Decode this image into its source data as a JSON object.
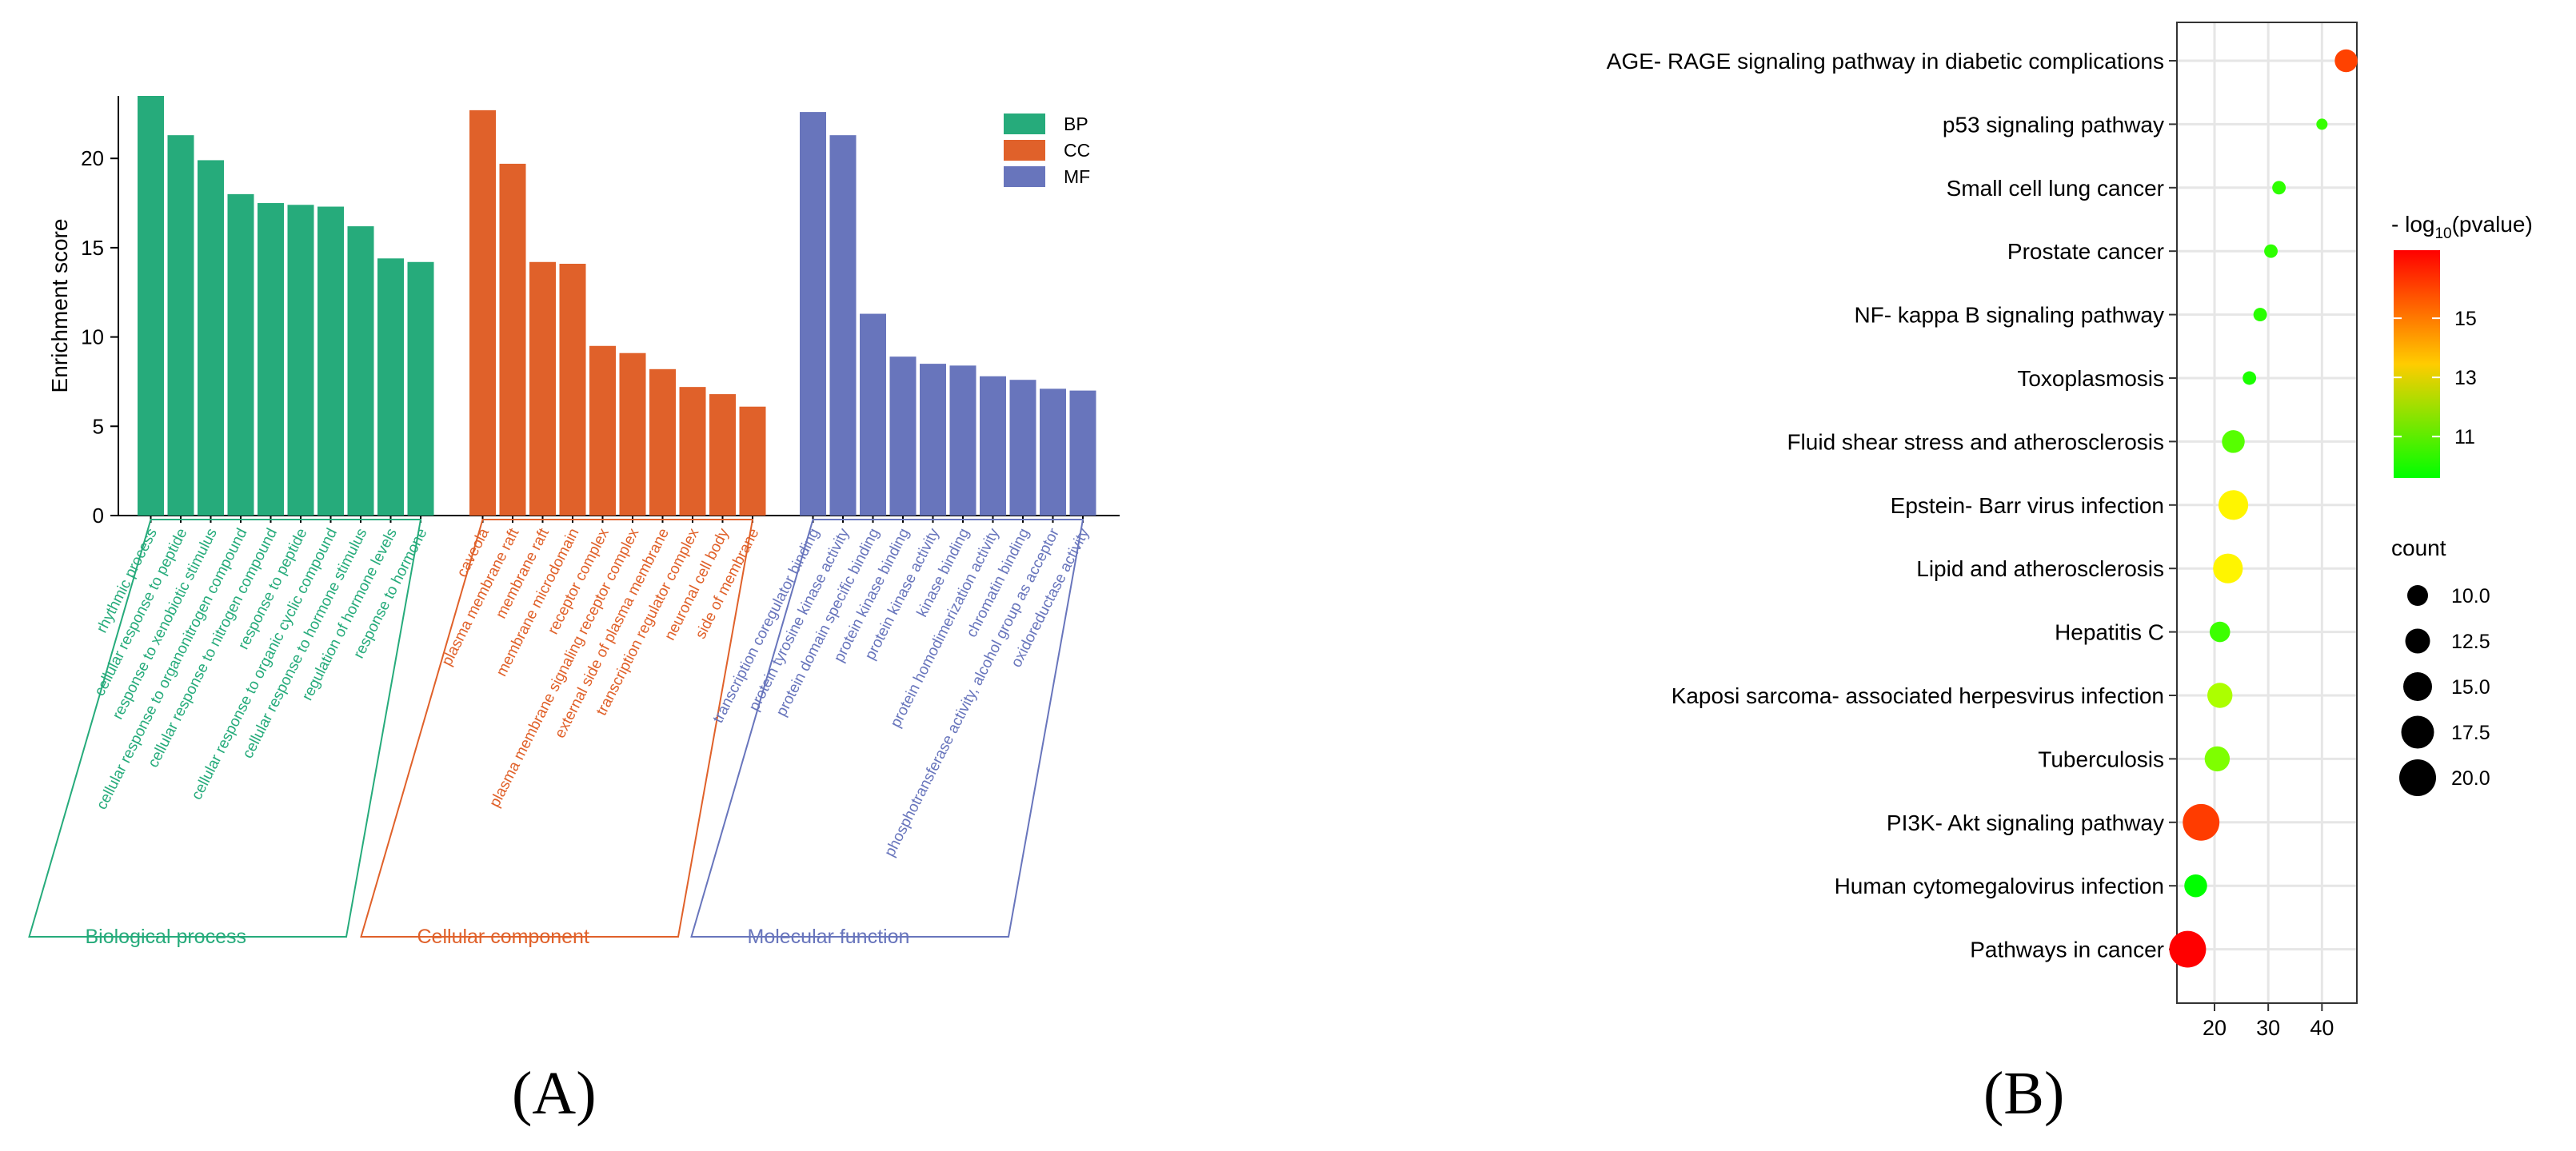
{
  "panels": {
    "a_label": "(A)",
    "b_label": "(B)"
  },
  "chart_data": [
    {
      "type": "bar",
      "ylabel": "Enrichment score",
      "ylim": [
        0,
        23.5
      ],
      "yticks": [
        0,
        5,
        10,
        15,
        20
      ],
      "legend": [
        {
          "key": "BP",
          "color": "#26AB7B"
        },
        {
          "key": "CC",
          "color": "#E0612A"
        },
        {
          "key": "MF",
          "color": "#6875BC"
        }
      ],
      "groups": [
        {
          "key": "BP",
          "name": "Biological process",
          "color": "#26AB7B",
          "categories": [
            "rhythmic process",
            "cellular response to peptide",
            "response to xenobiotic stimulus",
            "cellular response to organonitrogen compound",
            "cellular response to nitrogen compound",
            "response to peptide",
            "cellular response to organic cyclic compound",
            "cellular response to hormone stimulus",
            "regulation of hormone levels",
            "response to hormone"
          ],
          "values": [
            23.5,
            21.3,
            19.9,
            18.0,
            17.5,
            17.4,
            17.3,
            16.2,
            14.4,
            14.2
          ]
        },
        {
          "key": "CC",
          "name": "Cellular component",
          "color": "#E0612A",
          "categories": [
            "caveola",
            "plasma membrane raft",
            "membrane raft",
            "membrane microdomain",
            "receptor complex",
            "plasma membrane signaling receptor complex",
            "external side of plasma membrane",
            "transcription regulator complex",
            "neuronal cell body",
            "side of membrane"
          ],
          "values": [
            22.7,
            19.7,
            14.2,
            14.1,
            9.5,
            9.1,
            8.2,
            7.2,
            6.8,
            6.1
          ]
        },
        {
          "key": "MF",
          "name": "Molecular function",
          "color": "#6875BC",
          "categories": [
            "transcription coregulator binding",
            "protein tyrosine kinase activity",
            "protein domain specific binding",
            "protein kinase binding",
            "protein kinase activity",
            "kinase binding",
            "protein homodimerization activity",
            "chromatin binding",
            "phosphotransferase activity, alcohol group as acceptor",
            "oxidoreductase activity"
          ],
          "values": [
            22.6,
            21.3,
            11.3,
            8.9,
            8.5,
            8.4,
            7.8,
            7.6,
            7.1,
            7.0
          ]
        }
      ]
    },
    {
      "type": "scatter",
      "xlim": [
        13,
        46.5
      ],
      "xticks": [
        20,
        30,
        40
      ],
      "color_legend": {
        "title_prefix": "- log",
        "title_sub": "10",
        "title_suffix": "(pvalue)",
        "range": [
          9.6,
          17.3
        ],
        "ticks": [
          11,
          13,
          15
        ],
        "low_color": "#00FF00",
        "high_color": "#FF0000"
      },
      "size_legend": {
        "title": "count",
        "values": [
          10.0,
          12.5,
          15.0,
          17.5,
          20.0
        ],
        "labels": [
          "10.0",
          "12.5",
          "15.0",
          "17.5",
          "20.0"
        ]
      },
      "points": [
        {
          "pathway": "AGE- RAGE signaling pathway in diabetic complications",
          "x": 44.5,
          "neglog10p": 16.3,
          "count": 14
        },
        {
          "pathway": "p53 signaling pathway",
          "x": 40.0,
          "neglog10p": 10.4,
          "count": 9
        },
        {
          "pathway": "Small cell lung cancer",
          "x": 32.0,
          "neglog10p": 10.3,
          "count": 10
        },
        {
          "pathway": "Prostate cancer",
          "x": 30.5,
          "neglog10p": 10.3,
          "count": 10
        },
        {
          "pathway": "NF- kappa B signaling pathway",
          "x": 28.5,
          "neglog10p": 10.2,
          "count": 10
        },
        {
          "pathway": "Toxoplasmosis",
          "x": 26.5,
          "neglog10p": 10.0,
          "count": 10
        },
        {
          "pathway": "Fluid shear stress and atherosclerosis",
          "x": 23.5,
          "neglog10p": 10.9,
          "count": 14
        },
        {
          "pathway": "Epstein- Barr virus infection",
          "x": 23.5,
          "neglog10p": 13.6,
          "count": 17
        },
        {
          "pathway": "Lipid and atherosclerosis",
          "x": 22.5,
          "neglog10p": 13.6,
          "count": 17
        },
        {
          "pathway": "Hepatitis C",
          "x": 21.0,
          "neglog10p": 10.5,
          "count": 13
        },
        {
          "pathway": "Kaposi sarcoma- associated herpesvirus infection",
          "x": 21.0,
          "neglog10p": 12.2,
          "count": 15
        },
        {
          "pathway": "Tuberculosis",
          "x": 20.5,
          "neglog10p": 11.5,
          "count": 15
        },
        {
          "pathway": "PI3K- Akt signaling pathway",
          "x": 17.5,
          "neglog10p": 16.4,
          "count": 20
        },
        {
          "pathway": "Human cytomegalovirus infection",
          "x": 16.5,
          "neglog10p": 9.6,
          "count": 14
        },
        {
          "pathway": "Pathways in cancer",
          "x": 15.0,
          "neglog10p": 17.3,
          "count": 20
        }
      ]
    }
  ]
}
